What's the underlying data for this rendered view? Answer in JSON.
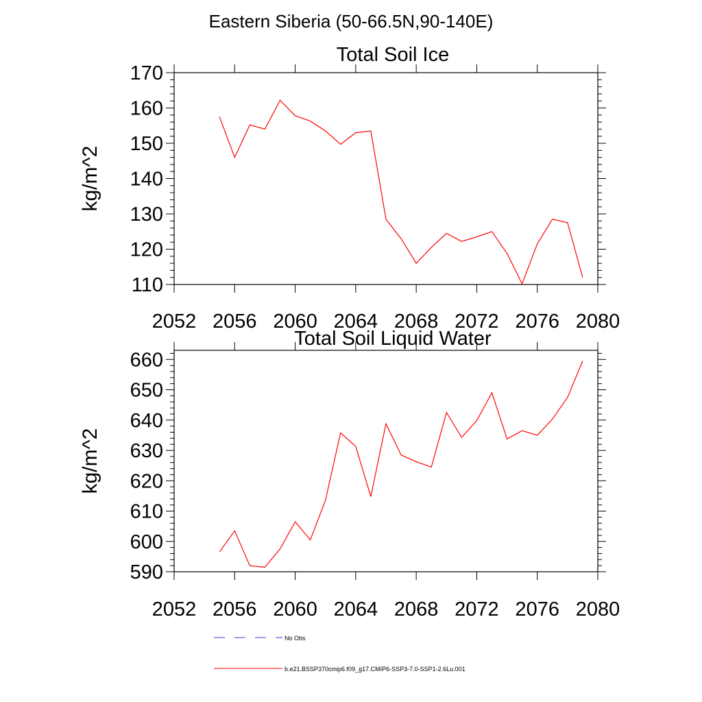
{
  "figure_title": "Eastern Siberia (50-66.5N,90-140E)",
  "chart_data": [
    {
      "type": "line",
      "title": "Total Soil Ice",
      "xlabel": "",
      "ylabel": "kg/m^2",
      "xlim": [
        2052,
        2080
      ],
      "ylim": [
        110,
        170
      ],
      "x_ticks": [
        2052,
        2056,
        2060,
        2064,
        2068,
        2072,
        2076,
        2080
      ],
      "y_ticks": [
        110,
        120,
        130,
        140,
        150,
        160,
        170
      ],
      "grid": false,
      "series": [
        {
          "name": "b.e21.BSSP370cmip6.f09_g17.CMIP6-SSP3-7.0-SSP1-2.6Lu.001",
          "color": "#ff0000",
          "x": [
            2055,
            2056,
            2057,
            2058,
            2059,
            2060,
            2061,
            2062,
            2063,
            2064,
            2065,
            2066,
            2067,
            2068,
            2069,
            2070,
            2071,
            2072,
            2073,
            2074,
            2075,
            2076,
            2077,
            2078,
            2079
          ],
          "y": [
            157.5,
            146,
            155.2,
            154,
            162.2,
            157.8,
            156.3,
            153.5,
            149.7,
            153,
            153.5,
            128.5,
            123,
            116,
            120.5,
            124.5,
            122.2,
            123.5,
            125,
            118.8,
            110.2,
            121.5,
            128.5,
            127.5,
            112
          ]
        }
      ]
    },
    {
      "type": "line",
      "title": "Total Soil Liquid Water",
      "xlabel": "",
      "ylabel": "kg/m^2",
      "xlim": [
        2052,
        2080
      ],
      "ylim": [
        590,
        663
      ],
      "x_ticks": [
        2052,
        2056,
        2060,
        2064,
        2068,
        2072,
        2076,
        2080
      ],
      "y_ticks": [
        590,
        600,
        610,
        620,
        630,
        640,
        650,
        660
      ],
      "grid": false,
      "series": [
        {
          "name": "b.e21.BSSP370cmip6.f09_g17.CMIP6-SSP3-7.0-SSP1-2.6Lu.001",
          "color": "#ff0000",
          "x": [
            2055,
            2056,
            2057,
            2058,
            2059,
            2060,
            2061,
            2062,
            2063,
            2064,
            2065,
            2066,
            2067,
            2068,
            2069,
            2070,
            2071,
            2072,
            2073,
            2074,
            2075,
            2076,
            2077,
            2078,
            2079
          ],
          "y": [
            596.5,
            603.5,
            592,
            591.5,
            597.5,
            606.5,
            600.5,
            613.5,
            635.8,
            631.3,
            614.8,
            638.8,
            628.5,
            626.3,
            624.5,
            642.5,
            634.3,
            639.8,
            649,
            633.8,
            636.5,
            635,
            640.3,
            647.5,
            659.5
          ]
        }
      ]
    }
  ],
  "legend": {
    "placement": "bottom",
    "entries": [
      {
        "label": "No Obs",
        "color": "#3b3bd1",
        "style": "dashed"
      },
      {
        "label": "b.e21.BSSP370cmip6.f09_g17.CMIP6-SSP3-7.0-SSP1-2.6Lu.001",
        "color": "#ff0000",
        "style": "solid"
      }
    ]
  }
}
